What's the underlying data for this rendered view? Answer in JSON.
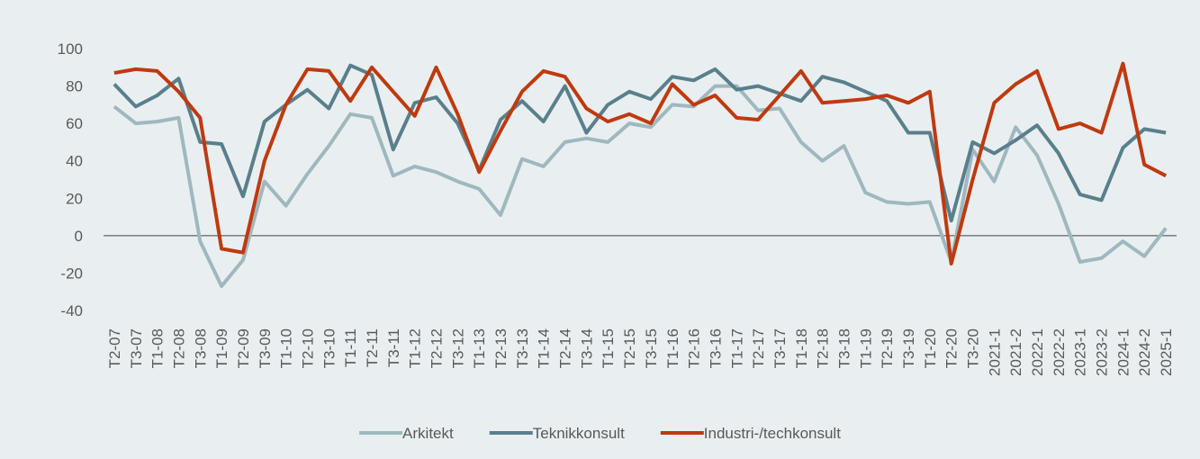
{
  "chart_data": {
    "type": "line",
    "categories": [
      "T2-07",
      "T3-07",
      "T1-08",
      "T2-08",
      "T3-08",
      "T1-09",
      "T2-09",
      "T3-09",
      "T1-10",
      "T2-10",
      "T3-10",
      "T1-11",
      "T2-11",
      "T3-11",
      "T1-12",
      "T2-12",
      "T3-12",
      "T1-13",
      "T2-13",
      "T3-13",
      "T1-14",
      "T2-14",
      "T3-14",
      "T1-15",
      "T2-15",
      "T3-15",
      "T1-16",
      "T2-16",
      "T3-16",
      "T1-17",
      "T2-17",
      "T3-17",
      "T1-18",
      "T2-18",
      "T3-18",
      "T1-19",
      "T2-19",
      "T3-19",
      "T1-20",
      "T2-20",
      "T3-20",
      "2021-1",
      "2021-2",
      "2022-1",
      "2022-2",
      "2023-1",
      "2023-2",
      "2024-1",
      "2024-2",
      "2025-1"
    ],
    "series": [
      {
        "name": "Arkitekt",
        "color": "#9fb8bf",
        "values": [
          69,
          60,
          61,
          63,
          -3,
          -27,
          -13,
          29,
          16,
          33,
          48,
          65,
          63,
          32,
          37,
          34,
          29,
          25,
          11,
          41,
          37,
          50,
          52,
          50,
          60,
          58,
          70,
          69,
          80,
          80,
          67,
          68,
          50,
          40,
          48,
          23,
          18,
          17,
          18,
          -14,
          46,
          29,
          58,
          43,
          17,
          -14,
          -12,
          -3,
          -11,
          4
        ]
      },
      {
        "name": "Teknikkonsult",
        "color": "#5a7f8c",
        "values": [
          81,
          69,
          75,
          84,
          50,
          49,
          21,
          61,
          70,
          78,
          68,
          91,
          86,
          46,
          71,
          74,
          60,
          35,
          62,
          72,
          61,
          80,
          55,
          70,
          77,
          73,
          85,
          83,
          89,
          78,
          80,
          76,
          72,
          85,
          82,
          77,
          72,
          55,
          55,
          8,
          50,
          44,
          51,
          59,
          44,
          22,
          19,
          47,
          57,
          55
        ]
      },
      {
        "name": "Industri-/techkonsult",
        "color": "#c0390f",
        "values": [
          87,
          89,
          88,
          77,
          63,
          -7,
          -9,
          40,
          70,
          89,
          88,
          72,
          90,
          77,
          64,
          90,
          65,
          34,
          56,
          77,
          88,
          85,
          68,
          61,
          65,
          60,
          81,
          70,
          75,
          63,
          62,
          75,
          88,
          71,
          72,
          73,
          75,
          71,
          77,
          -15,
          30,
          71,
          81,
          88,
          57,
          60,
          55,
          92,
          38,
          32
        ]
      }
    ],
    "ylim": [
      -40,
      100
    ],
    "yticks": [
      -40,
      -20,
      0,
      20,
      40,
      60,
      80,
      100
    ],
    "grid": false,
    "legend": "bottom"
  }
}
